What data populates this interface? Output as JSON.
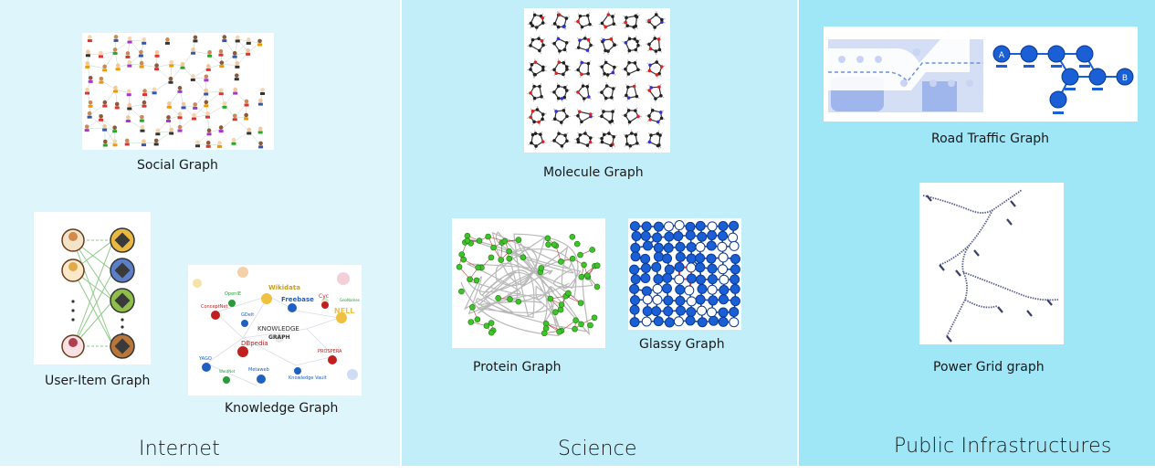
{
  "sections": {
    "internet": "Internet",
    "science": "Science",
    "infrastructure": "Public Infrastructures"
  },
  "captions": {
    "social": "Social Graph",
    "user_item": "User-Item Graph",
    "knowledge": "Knowledge Graph",
    "molecule": "Molecule Graph",
    "protein": "Protein Graph",
    "glassy": "Glassy Graph",
    "road": "Road Traffic Graph",
    "power": "Power Grid graph"
  },
  "knowledge_labels": {
    "k1": "Wikidata",
    "k2": "OpenIE",
    "k3": "Freebase",
    "k4": "Cyc",
    "k5": "GeoNames",
    "k6": "ConceptNet",
    "k7": "GDelt",
    "k8": "NELL",
    "k9": "KNOWLEDGE",
    "k10": "GRAPH",
    "k11": "DBpedia",
    "k12": "YAGO",
    "k13": "PROSPERA",
    "k14": "WordNet",
    "k15": "Metaweb",
    "k16": "Knowledge Vault"
  },
  "road_labels": {
    "start": "A",
    "end": "B"
  },
  "colors": {
    "internet_bg": "#def5fc",
    "science_bg": "#c2eefa",
    "infra_bg": "#9fe6f7",
    "graph_blue": "#1a5fd6",
    "protein_green": "#3ec42a"
  }
}
